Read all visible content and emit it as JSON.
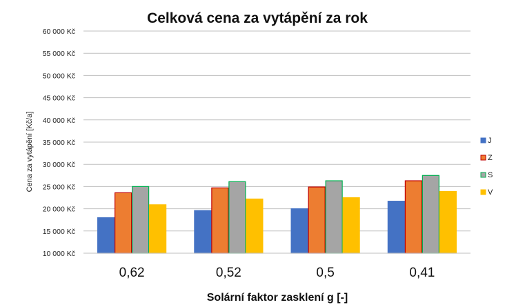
{
  "chart_data": {
    "type": "bar",
    "title": "Celková cena za vytápění za rok",
    "xlabel": "Solární faktor zasklení g [-]",
    "ylabel": "Cena za vytápění [Kč/a]",
    "categories": [
      "0,62",
      "0,52",
      "0,5",
      "0,41"
    ],
    "ylim": [
      10000,
      60000
    ],
    "ytick_step": 5000,
    "ytick_labels": [
      "10 000 Kč",
      "15 000 Kč",
      "20 000 Kč",
      "25 000 Kč",
      "30 000 Kč",
      "35 000 Kč",
      "40 000 Kč",
      "45 000 Kč",
      "50 000 Kč",
      "55 000 Kč",
      "60 000 Kč"
    ],
    "grid": true,
    "legend_position": "right",
    "series": [
      {
        "name": "J",
        "color": "#4472C4",
        "border": "#4472C4",
        "values": [
          18000,
          19600,
          20000,
          21700
        ]
      },
      {
        "name": "Z",
        "color": "#ED7D31",
        "border": "#C00000",
        "values": [
          23600,
          24700,
          24900,
          26300
        ]
      },
      {
        "name": "S",
        "color": "#A5A5A5",
        "border": "#00B050",
        "values": [
          25000,
          26100,
          26300,
          27500
        ]
      },
      {
        "name": "V",
        "color": "#FFC000",
        "border": "#FFC000",
        "values": [
          20900,
          22200,
          22500,
          23900
        ]
      }
    ]
  }
}
